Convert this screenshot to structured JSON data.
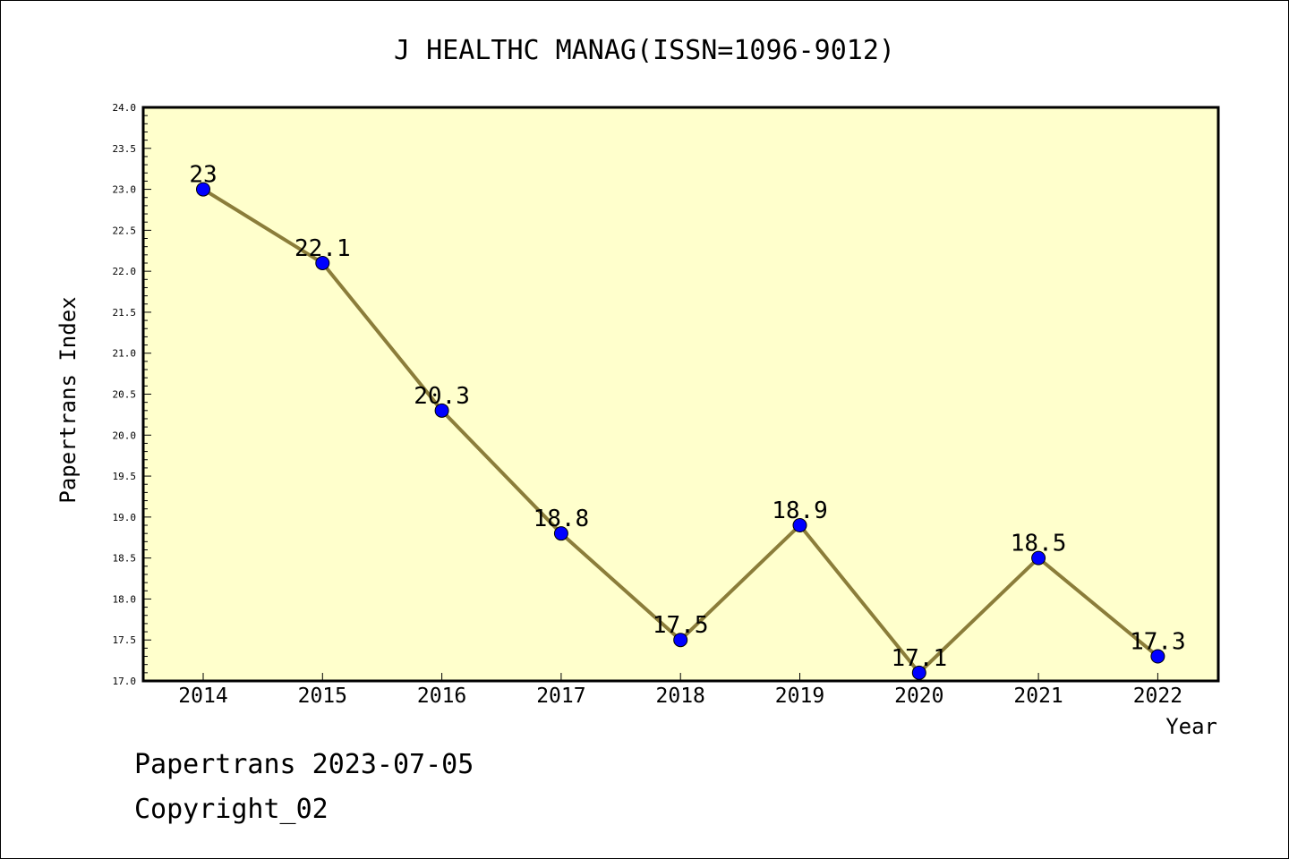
{
  "chart_data": {
    "type": "line",
    "title": "J HEALTHC MANAG(ISSN=1096-9012)",
    "xlabel": "Year",
    "ylabel": "Papertrans Index",
    "categories": [
      "2014",
      "2015",
      "2016",
      "2017",
      "2018",
      "2019",
      "2020",
      "2021",
      "2022"
    ],
    "values": [
      23,
      22.1,
      20.3,
      18.8,
      17.5,
      18.9,
      17.1,
      18.5,
      17.3
    ],
    "data_labels": [
      "23",
      "22.1",
      "20.3",
      "18.8",
      "17.5",
      "18.9",
      "17.1",
      "18.5",
      "17.3"
    ],
    "ylim": [
      17.0,
      24.0
    ],
    "yticks": [
      "17.0",
      "17.5",
      "18.0",
      "18.5",
      "19.0",
      "19.5",
      "20.0",
      "20.5",
      "21.0",
      "21.5",
      "22.0",
      "22.5",
      "23.0",
      "23.5",
      "24.0"
    ],
    "grid": false,
    "colors": {
      "plot_background": "#ffffcc",
      "line": "#8b7d3a",
      "marker": "#0000ff"
    }
  },
  "footer": {
    "line1": "Papertrans 2023-07-05",
    "line2": "Copyright_02"
  }
}
